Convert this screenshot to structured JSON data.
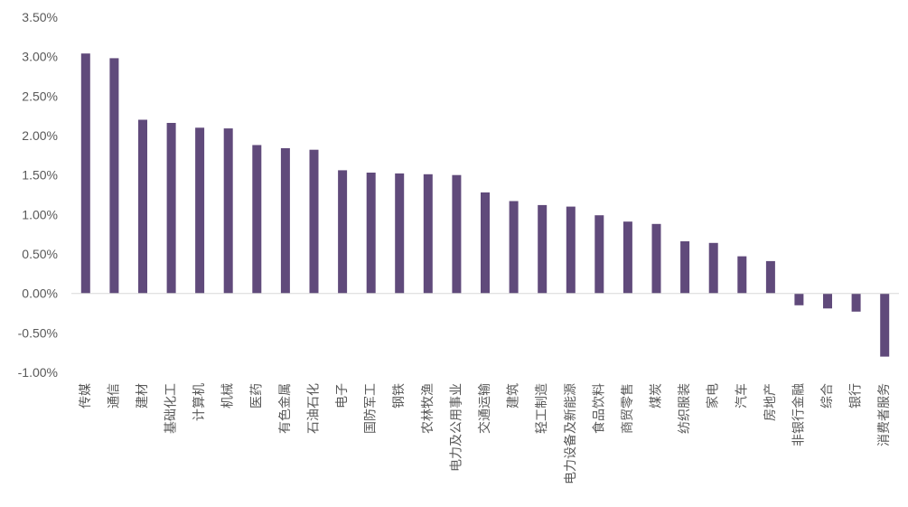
{
  "chart_data": {
    "type": "bar",
    "title": "",
    "xlabel": "",
    "ylabel": "",
    "ylim": [
      -1.0,
      3.5
    ],
    "yticks": [
      "3.50%",
      "3.00%",
      "2.50%",
      "2.00%",
      "1.50%",
      "1.00%",
      "0.50%",
      "0.00%",
      "-0.50%",
      "-1.00%"
    ],
    "categories": [
      "传媒",
      "通信",
      "建材",
      "基础化工",
      "计算机",
      "机械",
      "医药",
      "有色金属",
      "石油石化",
      "电子",
      "国防军工",
      "钢铁",
      "农林牧渔",
      "电力及公用事业",
      "交通运输",
      "建筑",
      "轻工制造",
      "电力设备及新能源",
      "食品饮料",
      "商贸零售",
      "煤炭",
      "纺织服装",
      "家电",
      "汽车",
      "房地产",
      "非银行金融",
      "综合",
      "银行",
      "消费者服务"
    ],
    "values": [
      3.04,
      2.98,
      2.2,
      2.16,
      2.1,
      2.09,
      1.88,
      1.84,
      1.82,
      1.56,
      1.53,
      1.52,
      1.51,
      1.5,
      1.28,
      1.17,
      1.12,
      1.1,
      0.99,
      0.91,
      0.88,
      0.66,
      0.64,
      0.47,
      0.41,
      -0.15,
      -0.19,
      -0.23,
      -0.8
    ],
    "bar_color": "#604a7b",
    "axis_color": "#d9d9d9",
    "grid": false,
    "legend": "none"
  }
}
